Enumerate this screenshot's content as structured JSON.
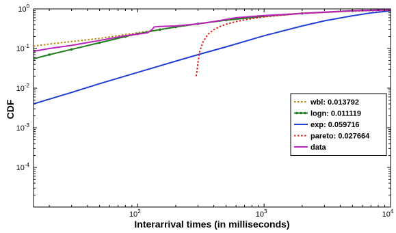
{
  "chart_data": {
    "type": "line",
    "title": "",
    "xlabel": "Interarrival times (in milliseconds)",
    "ylabel": "CDF",
    "xscale": "log",
    "yscale": "log",
    "xlim": [
      15,
      10000
    ],
    "ylim": [
      1e-05,
      1
    ],
    "grid": false,
    "legend_position": "lower-right",
    "x_ticks": [
      {
        "base": "10",
        "exp": "2",
        "value": 100
      },
      {
        "base": "10",
        "exp": "3",
        "value": 1000
      },
      {
        "base": "10",
        "exp": "4",
        "value": 10000
      }
    ],
    "y_ticks": [
      {
        "base": "10",
        "exp": "0",
        "value": 1
      },
      {
        "base": "10",
        "exp": "-1",
        "value": 0.1
      },
      {
        "base": "10",
        "exp": "-2",
        "value": 0.01
      },
      {
        "base": "10",
        "exp": "-3",
        "value": 0.001
      },
      {
        "base": "10",
        "exp": "-4",
        "value": 0.0001
      }
    ],
    "series": [
      {
        "name": "wbl: 0.013792",
        "color": "#b8860b",
        "style": "dotted",
        "marker": "none",
        "x": [
          15,
          20,
          30,
          50,
          80,
          100,
          150,
          200,
          300,
          500,
          1000,
          2000,
          5000,
          10000
        ],
        "y": [
          0.115,
          0.13,
          0.15,
          0.18,
          0.225,
          0.25,
          0.3,
          0.345,
          0.42,
          0.52,
          0.66,
          0.78,
          0.9,
          0.96
        ]
      },
      {
        "name": "logn: 0.011119",
        "color": "#1e7b1e",
        "style": "solid",
        "marker": "dot",
        "x": [
          15,
          20,
          30,
          50,
          80,
          100,
          150,
          200,
          300,
          500,
          1000,
          2000,
          5000,
          10000
        ],
        "y": [
          0.055,
          0.07,
          0.095,
          0.14,
          0.2,
          0.235,
          0.3,
          0.35,
          0.42,
          0.52,
          0.65,
          0.77,
          0.89,
          0.95
        ]
      },
      {
        "name": "exp: 0.059716",
        "color": "#1f3fd6",
        "style": "solid",
        "marker": "none",
        "x": [
          15,
          30,
          50,
          100,
          200,
          300,
          500,
          1000,
          2000,
          3000,
          5000,
          7000,
          10000
        ],
        "y": [
          0.004,
          0.0078,
          0.013,
          0.025,
          0.048,
          0.07,
          0.11,
          0.21,
          0.37,
          0.5,
          0.67,
          0.79,
          0.89
        ]
      },
      {
        "name": "pareto: 0.027664",
        "color": "#e31a1c",
        "style": "dotted",
        "marker": "none",
        "x": [
          290,
          295,
          300,
          310,
          330,
          360,
          400,
          450,
          500,
          600,
          800,
          1000,
          2000,
          5000,
          10000
        ],
        "y": [
          0.02,
          0.028,
          0.045,
          0.085,
          0.15,
          0.23,
          0.3,
          0.36,
          0.41,
          0.48,
          0.57,
          0.63,
          0.77,
          0.88,
          0.93
        ]
      },
      {
        "name": "data",
        "color": "#bb22bb",
        "style": "solid",
        "marker": "none",
        "x": [
          15,
          20,
          30,
          50,
          80,
          100,
          120,
          130,
          135,
          150,
          200,
          300,
          400,
          500,
          600,
          700,
          1000,
          2000,
          3000,
          5000,
          10000
        ],
        "y": [
          0.085,
          0.1,
          0.12,
          0.16,
          0.21,
          0.23,
          0.25,
          0.3,
          0.35,
          0.36,
          0.37,
          0.42,
          0.48,
          0.54,
          0.6,
          0.62,
          0.68,
          0.77,
          0.83,
          0.9,
          0.95
        ]
      }
    ]
  }
}
